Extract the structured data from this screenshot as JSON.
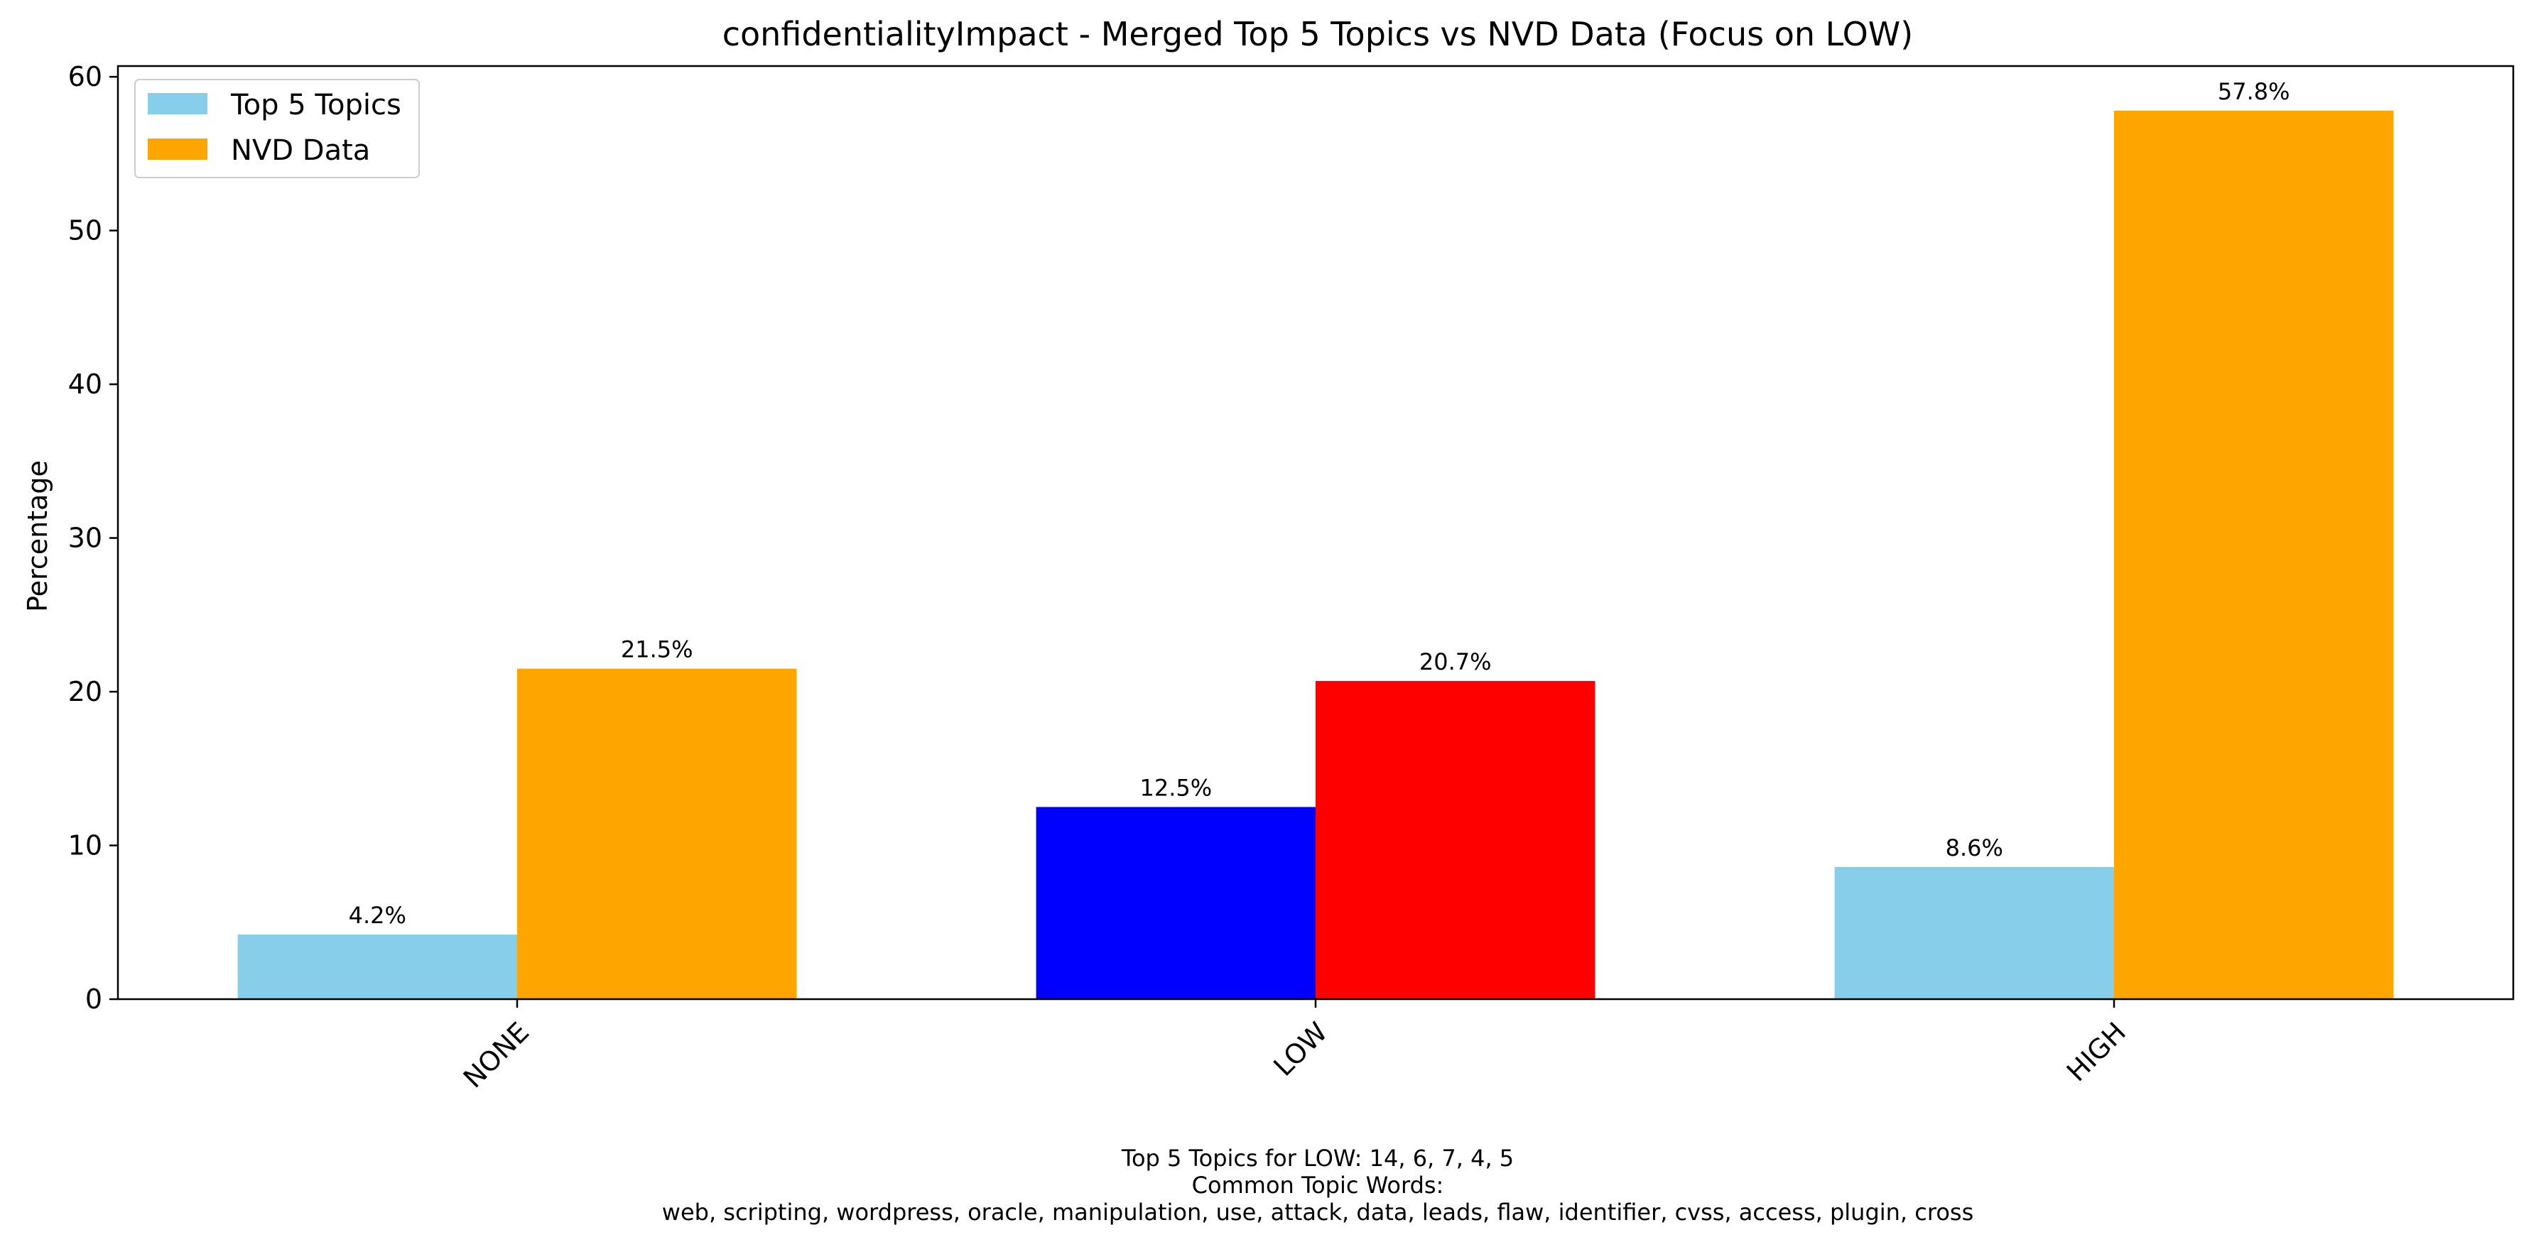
{
  "chart_data": {
    "type": "bar",
    "title": "confidentialityImpact - Merged Top 5 Topics vs NVD Data (Focus on LOW)",
    "xlabel": "",
    "ylabel": "Percentage",
    "categories": [
      "NONE",
      "LOW",
      "HIGH"
    ],
    "series": [
      {
        "name": "Top 5 Topics",
        "values": [
          4.2,
          12.5,
          8.6
        ],
        "labels": [
          "4.2%",
          "12.5%",
          "8.6%"
        ],
        "color": "#87ceeb",
        "focus_color": "#0000ff"
      },
      {
        "name": "NVD Data",
        "values": [
          21.5,
          20.7,
          57.8
        ],
        "labels": [
          "21.5%",
          "20.7%",
          "57.8%"
        ],
        "color": "#ffa500",
        "focus_color": "#ff0000"
      }
    ],
    "focus_category": "LOW",
    "ylim": [
      0,
      60.7
    ],
    "yticks": [
      0,
      10,
      20,
      30,
      40,
      50,
      60
    ],
    "grid": false,
    "legend": "top-left"
  },
  "caption": {
    "line1": "Top 5 Topics for LOW: 14, 6, 7, 4, 5",
    "line2": "Common Topic Words:",
    "line3": "web,  scripting,  wordpress,  oracle,  manipulation,  use,  attack,  data,  leads,  flaw,  identifier,  cvss,  access,  plugin,  cross"
  }
}
